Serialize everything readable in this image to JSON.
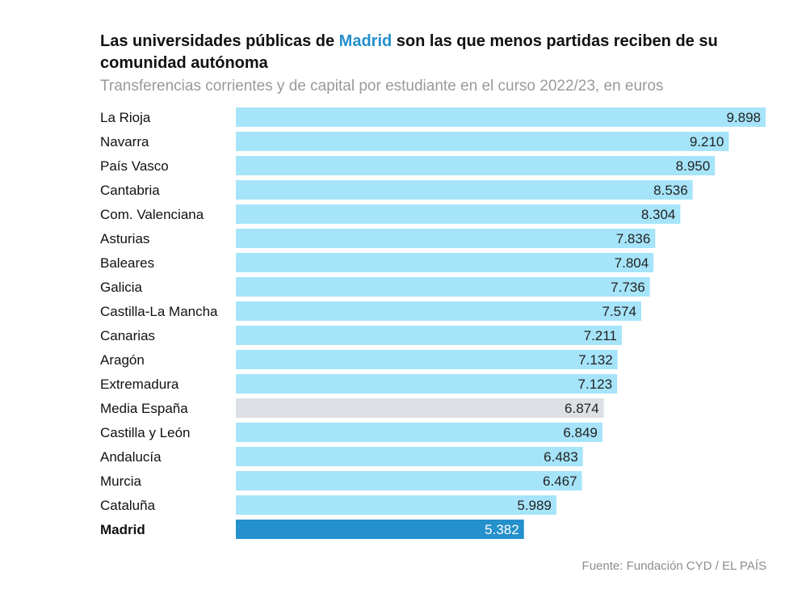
{
  "header": {
    "title_before": "Las universidades públicas de ",
    "title_highlight": "Madrid",
    "title_after": " son las que menos partidas reciben de su comunidad autónoma",
    "subtitle": "Transferencias corrientes y de capital por estudiante en el curso 2022/23, en euros"
  },
  "source": "Fuente: Fundación CYD / EL PAÍS",
  "colors": {
    "default_bar": "#a6e4fa",
    "average_bar": "#dde1e5",
    "highlight_bar": "#2490cc",
    "label_text": "#222222",
    "highlight_label_text": "#ffffff",
    "title_highlight": "#2490cc"
  },
  "chart_data": {
    "type": "bar",
    "orientation": "horizontal",
    "categories": [
      "La Rioja",
      "Navarra",
      "País Vasco",
      "Cantabria",
      "Com. Valenciana",
      "Asturias",
      "Baleares",
      "Galicia",
      "Castilla-La Mancha",
      "Canarias",
      "Aragón",
      "Extremadura",
      "Media España",
      "Castilla y León",
      "Andalucía",
      "Murcia",
      "Cataluña",
      "Madrid"
    ],
    "values": [
      9898,
      9210,
      8950,
      8536,
      8304,
      7836,
      7804,
      7736,
      7574,
      7211,
      7132,
      7123,
      6874,
      6849,
      6483,
      6467,
      5989,
      5382
    ],
    "value_labels": [
      "9.898",
      "9.210",
      "8.950",
      "8.536",
      "8.304",
      "7.836",
      "7.804",
      "7.736",
      "7.574",
      "7.211",
      "7.132",
      "7.123",
      "6.874",
      "6.849",
      "6.483",
      "6.467",
      "5.989",
      "5.382"
    ],
    "highlight": [
      "default",
      "default",
      "default",
      "default",
      "default",
      "default",
      "default",
      "default",
      "default",
      "default",
      "default",
      "default",
      "average",
      "default",
      "default",
      "default",
      "default",
      "highlight"
    ],
    "xlim": [
      0,
      9898
    ],
    "grid": false,
    "legend": "none"
  }
}
